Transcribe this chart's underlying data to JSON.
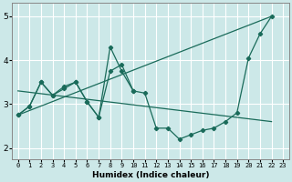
{
  "xlabel": "Humidex (Indice chaleur)",
  "background_color": "#cce8e8",
  "grid_color": "#ffffff",
  "line_color": "#1a6b5a",
  "xlim": [
    -0.5,
    23.5
  ],
  "ylim": [
    1.75,
    5.3
  ],
  "yticks": [
    2,
    3,
    4,
    5
  ],
  "xticks": [
    0,
    1,
    2,
    3,
    4,
    5,
    6,
    7,
    8,
    9,
    10,
    11,
    12,
    13,
    14,
    15,
    16,
    17,
    18,
    19,
    20,
    21,
    22,
    23
  ],
  "series": [
    {
      "x": [
        0,
        1,
        2,
        3,
        4,
        5,
        6,
        7,
        8,
        9,
        10,
        11,
        12,
        13,
        14,
        15,
        16,
        17,
        18,
        19,
        20,
        21,
        22
      ],
      "y": [
        2.75,
        2.95,
        3.5,
        3.2,
        3.4,
        3.5,
        3.05,
        2.7,
        4.3,
        3.75,
        3.3,
        3.25,
        2.45,
        2.45,
        2.2,
        2.3,
        2.4,
        2.45,
        2.6,
        2.8,
        4.05,
        4.6,
        5.0
      ]
    },
    {
      "x": [
        0,
        1,
        2,
        3,
        4,
        5,
        6,
        7,
        8,
        9,
        10
      ],
      "y": [
        2.75,
        2.95,
        3.5,
        3.2,
        3.35,
        3.5,
        3.05,
        2.7,
        3.75,
        3.9,
        3.3
      ]
    },
    {
      "x": [
        0,
        22
      ],
      "y": [
        2.75,
        5.0
      ]
    },
    {
      "x": [
        0,
        22
      ],
      "y": [
        3.3,
        2.6
      ]
    }
  ]
}
